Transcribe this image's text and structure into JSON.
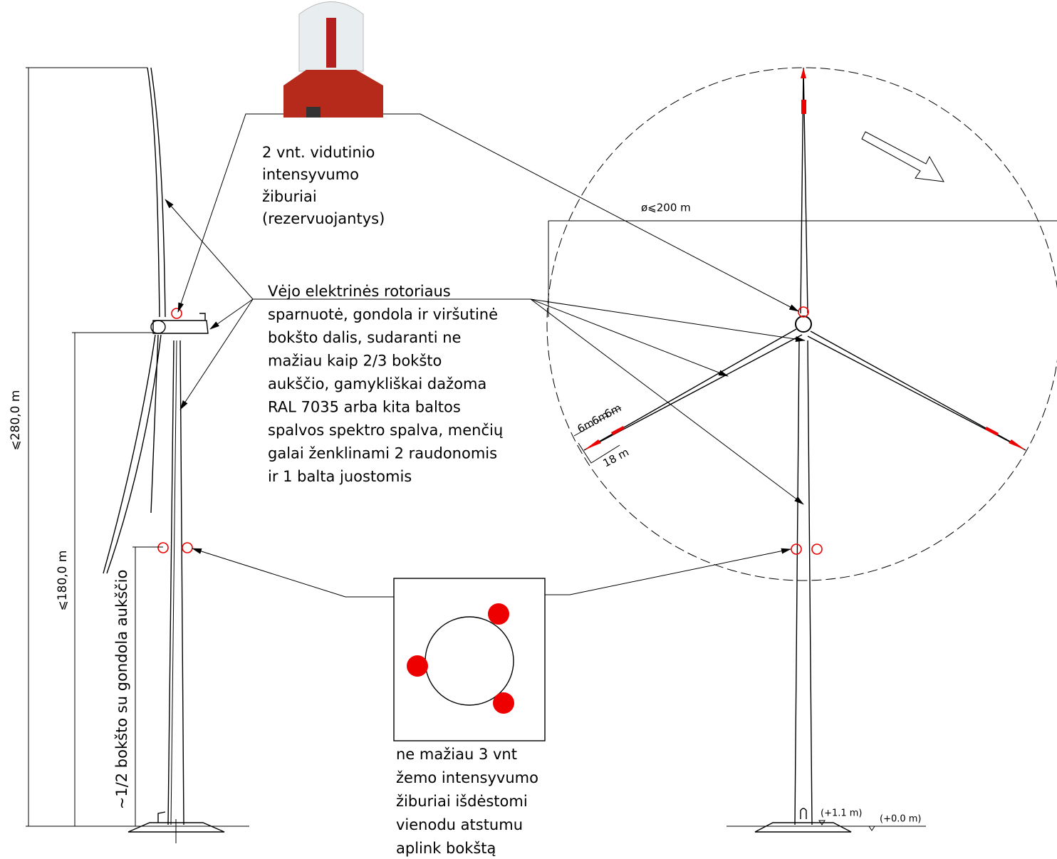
{
  "lamp_label": {
    "lines": [
      "2 vnt. vidutinio",
      "intensyvumo",
      "žiburiai",
      "(rezervuojantys)"
    ]
  },
  "main_label": {
    "lines": [
      "Vėjo elektrinės rotoriaus",
      "sparnuotė, gondola ir viršutinė",
      "bokšto dalis, sudaranti ne",
      "mažiau kaip 2/3 bokšto",
      "aukščio, gamykliškai dažoma",
      "RAL 7035 arba kita baltos",
      "spalvos spektro spalva, menčių",
      "galai ženklinami 2 raudonomis",
      "ir 1 balta juostomis"
    ]
  },
  "low_label": {
    "lines": [
      "ne mažiau 3 vnt",
      "žemo intensyvumo",
      "žiburiai išdėstomi",
      "vienodu atstumu",
      "aplink bokštą"
    ]
  },
  "dimensions": {
    "total_height": "⩽280,0 m",
    "hub_height": "⩽180,0 m",
    "half_height": "~1/2 bokšto su gondola aukščio",
    "rotor_diameter": "ø⩽200 m",
    "band_1": "6m",
    "band_2": "6m",
    "band_3": "6m",
    "band_total": "18 m",
    "level_top": "(+1.1 m)",
    "level_ground": "(+0.0 m)"
  }
}
